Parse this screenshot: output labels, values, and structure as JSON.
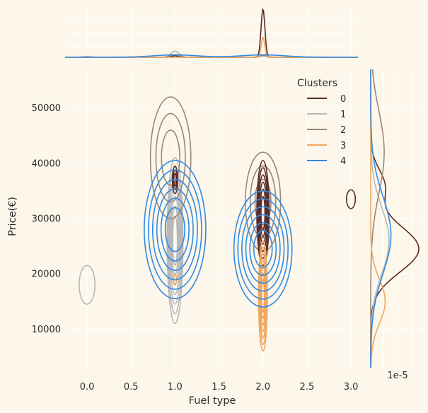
{
  "chart_data": {
    "type": "kde-jointplot",
    "xlabel": "Fuel type",
    "ylabel": "Price(€)",
    "xlim": [
      -0.25,
      3.08
    ],
    "ylim": [
      3000,
      57000
    ],
    "x_ticks": [
      0.0,
      0.5,
      1.0,
      1.5,
      2.0,
      2.5,
      3.0
    ],
    "x_tick_labels": [
      "0.0",
      "0.5",
      "1.0",
      "1.5",
      "2.0",
      "2.5",
      "3.0"
    ],
    "y_ticks": [
      10000,
      20000,
      30000,
      40000,
      50000
    ],
    "y_tick_labels": [
      "10000",
      "20000",
      "30000",
      "40000",
      "50000"
    ],
    "marginal_y_offset_label": "1e-5",
    "grid": true,
    "legend": {
      "title": "Clusters",
      "placement": "top-right"
    },
    "series": [
      {
        "name": "0",
        "color": "#5c2b28",
        "contours": [
          {
            "cx": 1.0,
            "cy": 37000,
            "rx": 0.03,
            "ry": 2500,
            "levels": 3
          },
          {
            "cx": 2.0,
            "cy": 31000,
            "rx": 0.07,
            "ry": 9500,
            "levels": 6
          },
          {
            "cx": 3.0,
            "cy": 33500,
            "rx": 0.05,
            "ry": 1700,
            "levels": 1
          }
        ],
        "marginal_x": {
          "peaks": [
            {
              "x": 2.0,
              "h": 1.0,
              "w": 0.022
            },
            {
              "x": 1.0,
              "h": 0.03,
              "w": 0.04
            }
          ]
        },
        "marginal_y": {
          "peaks": [
            {
              "y": 24500,
              "h": 1.0,
              "w": 4200
            },
            {
              "y": 36000,
              "h": 0.28,
              "w": 3000
            }
          ]
        }
      },
      {
        "name": "1",
        "color": "#b8b8b8",
        "contours": [
          {
            "cx": 1.0,
            "cy": 26000,
            "rx": 0.09,
            "ry": 15000,
            "levels": 7
          },
          {
            "cx": 0.0,
            "cy": 18000,
            "rx": 0.09,
            "ry": 3500,
            "levels": 1
          }
        ],
        "marginal_x": {
          "peaks": [
            {
              "x": 1.0,
              "h": 0.13,
              "w": 0.045
            },
            {
              "x": 0.0,
              "h": 0.02,
              "w": 0.05
            },
            {
              "x": 2.0,
              "h": 0.02,
              "w": 0.04
            }
          ]
        },
        "marginal_y": {
          "peaks": [
            {
              "y": 26000,
              "h": 0.38,
              "w": 6000
            }
          ]
        }
      },
      {
        "name": "2",
        "color": "#9b8876",
        "contours": [
          {
            "cx": 0.95,
            "cy": 41000,
            "rx": 0.23,
            "ry": 11000,
            "levels": 3
          },
          {
            "cx": 2.0,
            "cy": 33000,
            "rx": 0.2,
            "ry": 9000,
            "levels": 3
          }
        ],
        "marginal_x": {
          "peaks": [
            {
              "x": 1.0,
              "h": 0.05,
              "w": 0.06
            },
            {
              "x": 2.0,
              "h": 0.04,
              "w": 0.05
            }
          ]
        },
        "marginal_y": {
          "peaks": [
            {
              "y": 42000,
              "h": 0.28,
              "w": 7500
            }
          ]
        }
      },
      {
        "name": "3",
        "color": "#f0a860",
        "contours": [
          {
            "cx": 2.0,
            "cy": 16000,
            "rx": 0.05,
            "ry": 10000,
            "levels": 7
          },
          {
            "cx": 1.0,
            "cy": 19000,
            "rx": 0.015,
            "ry": 1000,
            "levels": 1
          }
        ],
        "marginal_x": {
          "peaks": [
            {
              "x": 2.0,
              "h": 0.42,
              "w": 0.02
            }
          ]
        },
        "marginal_y": {
          "peaks": [
            {
              "y": 15000,
              "h": 0.3,
              "w": 4000
            }
          ]
        }
      },
      {
        "name": "4",
        "color": "#2e8be6",
        "contours": [
          {
            "cx": 1.0,
            "cy": 28000,
            "rx": 0.35,
            "ry": 12500,
            "levels": 6
          },
          {
            "cx": 2.0,
            "cy": 24500,
            "rx": 0.33,
            "ry": 10500,
            "levels": 6
          }
        ],
        "marginal_x": {
          "peaks": [
            {
              "x": 1.0,
              "h": 0.05,
              "w": 0.25
            },
            {
              "x": 2.0,
              "h": 0.05,
              "w": 0.25
            }
          ]
        },
        "marginal_y": {
          "peaks": [
            {
              "y": 27000,
              "h": 0.42,
              "w": 7000
            }
          ]
        }
      }
    ]
  }
}
